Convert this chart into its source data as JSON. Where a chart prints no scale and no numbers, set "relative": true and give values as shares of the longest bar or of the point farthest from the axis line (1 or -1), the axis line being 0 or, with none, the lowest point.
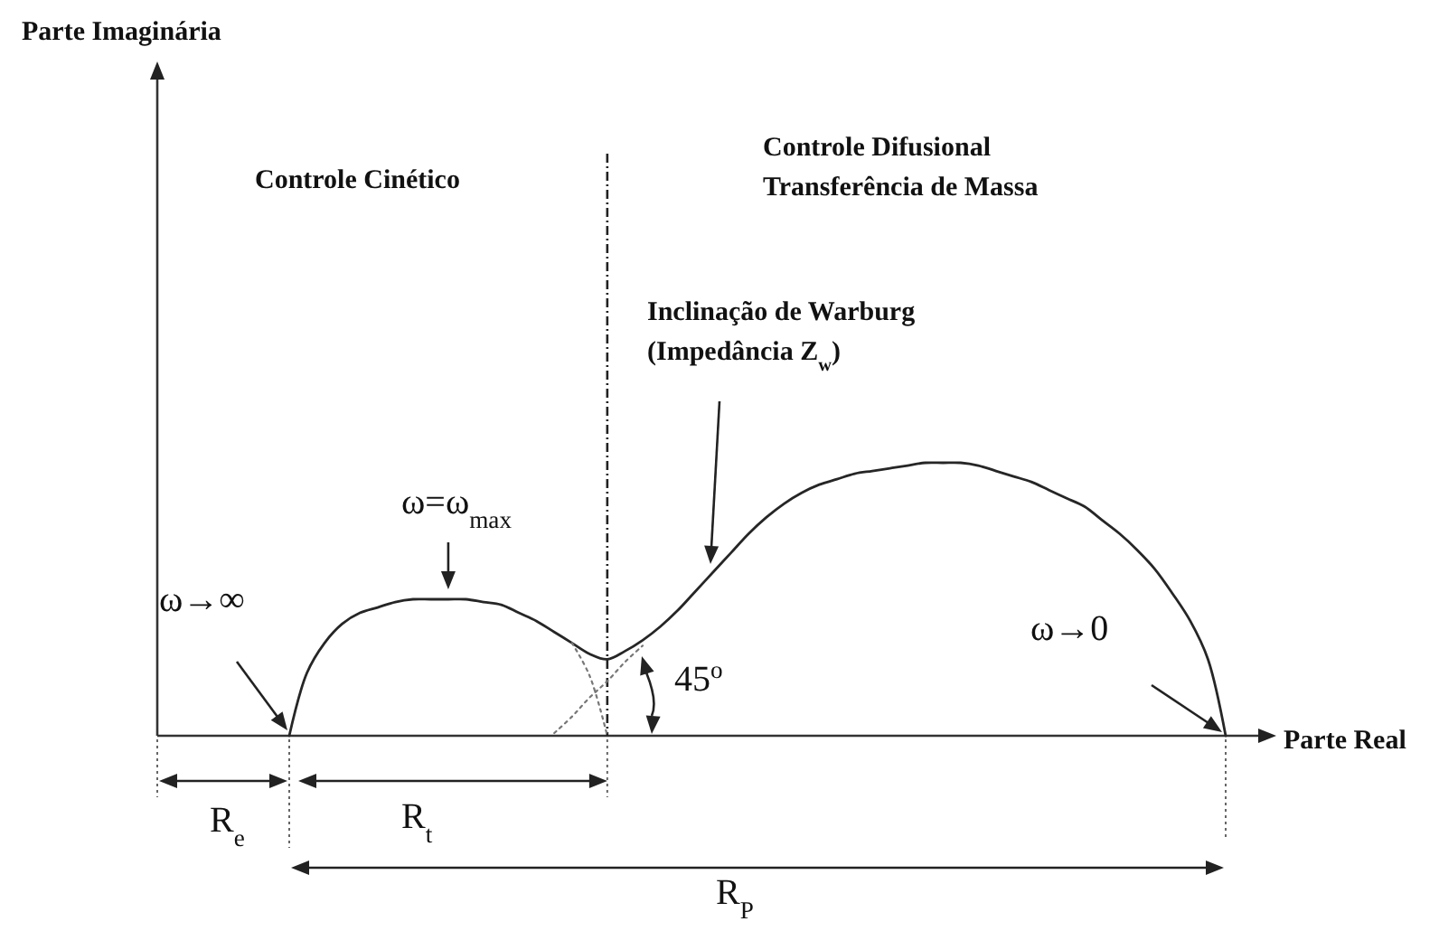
{
  "chart_data": {
    "type": "line",
    "relative": true,
    "xlabel": "Parte Real",
    "line_style": "solid",
    "categories": [
      null,
      null,
      null,
      null,
      null,
      null,
      null,
      null,
      null,
      null,
      null,
      null,
      null,
      null,
      null,
      null,
      null,
      null,
      null,
      null,
      null,
      null,
      null,
      null,
      null,
      null,
      null,
      null,
      null,
      null,
      null,
      null,
      null,
      null,
      null,
      null,
      null,
      null,
      null,
      null,
      null,
      null,
      null,
      null,
      null,
      null,
      null,
      null,
      null,
      null,
      null,
      null,
      null,
      null
    ],
    "series": [
      {
        "color": "#262626",
        "values": [
          0,
          0.23,
          0.34,
          0.41,
          0.45,
          0.47,
          0.49,
          0.5,
          0.5,
          0.5,
          0.5,
          0.49,
          0.48,
          0.45,
          0.42,
          0.38,
          0.34,
          0.3,
          0.28,
          0.31,
          0.35,
          0.4,
          0.46,
          0.53,
          0.6,
          0.67,
          0.74,
          0.8,
          0.85,
          0.89,
          0.92,
          0.94,
          0.96,
          0.97,
          0.98,
          0.99,
          1,
          1,
          1,
          0.99,
          0.97,
          0.95,
          0.93,
          0.9,
          0.87,
          0.84,
          0.79,
          0.74,
          0.68,
          0.61,
          0.52,
          0.42,
          0.28,
          0
        ]
      },
      {
        "color": "#777777",
        "line_style": "dotted",
        "values": [
          null,
          null,
          null,
          null,
          null,
          null,
          null,
          null,
          null,
          null,
          null,
          null,
          null,
          null,
          null,
          null,
          0.34,
          0.22,
          0,
          null,
          null,
          null,
          null,
          null,
          null,
          null,
          null,
          null,
          null,
          null,
          null,
          null,
          null,
          null,
          null,
          null,
          null,
          null,
          null,
          null,
          null,
          null,
          null,
          null,
          null,
          null,
          null,
          null,
          null,
          null,
          null,
          null,
          null,
          null
        ]
      },
      {
        "color": "#777777",
        "line_style": "dotted",
        "values": [
          null,
          null,
          null,
          null,
          null,
          null,
          null,
          null,
          null,
          null,
          null,
          null,
          null,
          null,
          null,
          0.01,
          0.07,
          0.14,
          0.2,
          0.27,
          0.33,
          null,
          null,
          null,
          null,
          null,
          null,
          null,
          null,
          null,
          null,
          null,
          null,
          null,
          null,
          null,
          null,
          null,
          null,
          null,
          null,
          null,
          null,
          null,
          null,
          null,
          null,
          null,
          null,
          null,
          null,
          null,
          null,
          null
        ]
      }
    ],
    "annotations": [
      "Parte Imaginária",
      "Controle Cinético",
      "Controle Difusional\nTransferência de Massa",
      "Inclinação de Warburg\n(Impedância Z$_{w}$)",
      "ω=ω$_{max}$",
      "ω→∞",
      "45$^{o}$",
      "ω→0",
      "R$_{e}$",
      "R$_{t}$",
      "R$_{P}$"
    ]
  }
}
